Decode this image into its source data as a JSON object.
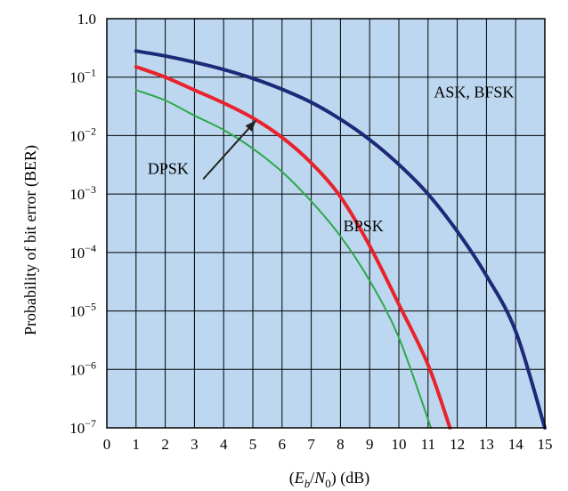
{
  "chart_data": {
    "type": "line",
    "xlabel": "(E_b/N_0) (dB)",
    "ylabel": "Probability of bit error (BER)",
    "xlim": [
      0,
      15
    ],
    "ylim": [
      1e-07,
      1
    ],
    "y_scale": "log",
    "grid": true,
    "x_ticks": [
      0,
      1,
      2,
      3,
      4,
      5,
      6,
      7,
      8,
      9,
      10,
      11,
      12,
      13,
      14,
      15
    ],
    "y_ticks": [
      {
        "value": 1,
        "label": "1.0"
      },
      {
        "value": 0.1,
        "base": "10",
        "exp": "−1"
      },
      {
        "value": 0.01,
        "base": "10",
        "exp": "−2"
      },
      {
        "value": 0.001,
        "base": "10",
        "exp": "−3"
      },
      {
        "value": 0.0001,
        "base": "10",
        "exp": "−4"
      },
      {
        "value": 1e-05,
        "base": "10",
        "exp": "−5"
      },
      {
        "value": 1e-06,
        "base": "10",
        "exp": "−6"
      },
      {
        "value": 1e-07,
        "base": "10",
        "exp": "−7"
      }
    ],
    "plot_background": "#bcd7ef",
    "series": [
      {
        "name": "ASK, BFSK",
        "color": "#1c2a78",
        "width": 4,
        "x": [
          1,
          2,
          3,
          4,
          5,
          6,
          7,
          8,
          9,
          10,
          11,
          12,
          13,
          14,
          15
        ],
        "y": [
          0.28,
          0.23,
          0.18,
          0.135,
          0.095,
          0.062,
          0.037,
          0.019,
          0.0085,
          0.0032,
          0.001,
          0.00023,
          4e-05,
          4.5e-06,
          1e-07
        ]
      },
      {
        "name": "DPSK",
        "color": "#e8232b",
        "width": 4,
        "x": [
          1,
          2,
          3,
          4,
          5,
          6,
          7,
          8,
          9,
          10,
          11,
          11.75
        ],
        "y": [
          0.15,
          0.1,
          0.06,
          0.036,
          0.02,
          0.0093,
          0.0034,
          0.0009,
          0.00013,
          1.3e-05,
          1.2e-06,
          1e-07
        ]
      },
      {
        "name": "BPSK",
        "color": "#2ea84a",
        "width": 2,
        "x": [
          1,
          2,
          3,
          4,
          5,
          6,
          7,
          8,
          9,
          10,
          11.1
        ],
        "y": [
          0.06,
          0.04,
          0.022,
          0.0125,
          0.006,
          0.0024,
          0.00075,
          0.00019,
          3.3e-05,
          3.5e-06,
          1e-07
        ]
      }
    ],
    "annotations": [
      {
        "text": "ASK, BFSK",
        "x": 11.2,
        "y": 0.045
      },
      {
        "text": "DPSK",
        "x": 1.4,
        "y": 0.0022
      },
      {
        "text": "BPSK",
        "x": 8.1,
        "y": 0.00023
      }
    ]
  }
}
